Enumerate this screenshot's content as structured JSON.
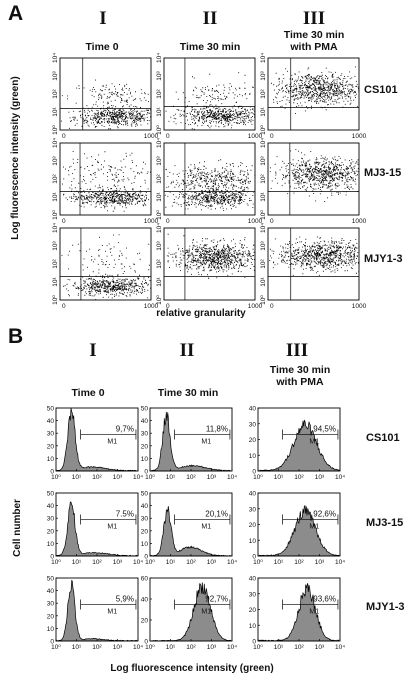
{
  "figure": {
    "panel_A": {
      "letter": "A",
      "columns": [
        {
          "roman": "I",
          "title_lines": [
            "Time  0"
          ]
        },
        {
          "roman": "II",
          "title_lines": [
            "Time  30 min"
          ]
        },
        {
          "roman": "III",
          "title_lines": [
            "Time  30 min",
            "with PMA"
          ]
        }
      ],
      "rows": [
        "CS101",
        "MJ3-15",
        "MJY1-3"
      ],
      "y_axis_label": "Log fluorescence intensity (green)",
      "x_axis_label": "relative granularity",
      "x_tick_labels": [
        "0",
        "1000"
      ],
      "y_tick_labels": [
        "10⁰",
        "10¹",
        "10²",
        "10³",
        "10⁴"
      ]
    },
    "panel_B": {
      "letter": "B",
      "columns": [
        {
          "roman": "I",
          "title_lines": [
            "Time  0"
          ]
        },
        {
          "roman": "II",
          "title_lines": [
            "Time  30 min"
          ]
        },
        {
          "roman": "III",
          "title_lines": [
            "Time 30 min",
            "with PMA"
          ]
        }
      ],
      "rows": [
        "CS101",
        "MJ3-15",
        "MJY1-3"
      ],
      "y_axis_label": "Cell number",
      "x_axis_label": "Log fluorescence intensity (green)",
      "x_tick_labels": [
        "10⁰",
        "10¹",
        "10²",
        "10³",
        "10⁴"
      ],
      "gate_label": "M1"
    }
  },
  "chart_data": [
    {
      "type": "scatter",
      "description_free": true,
      "panel": "A",
      "xlabel": "relative granularity",
      "ylabel": "Log fluorescence intensity (green)",
      "xlim": [
        0,
        1000
      ],
      "ylim_log10": [
        0,
        4
      ],
      "log_y": true,
      "grid": false,
      "cells": [
        {
          "row": "CS101",
          "col": "I",
          "clusters": [
            {
              "x": 620,
              "y_log": 0.75,
              "sx": 230,
              "sy": 0.25,
              "n": 520
            },
            {
              "x": 600,
              "y_log": 1.9,
              "sx": 250,
              "sy": 0.4,
              "n": 140
            }
          ],
          "gate": {
            "x": 250,
            "y_log": 1.2
          }
        },
        {
          "row": "CS101",
          "col": "II",
          "clusters": [
            {
              "x": 620,
              "y_log": 0.8,
              "sx": 230,
              "sy": 0.25,
              "n": 520
            },
            {
              "x": 600,
              "y_log": 1.9,
              "sx": 250,
              "sy": 0.45,
              "n": 130
            }
          ],
          "gate": {
            "x": 230,
            "y_log": 1.3
          }
        },
        {
          "row": "CS101",
          "col": "III",
          "clusters": [
            {
              "x": 560,
              "y_log": 2.3,
              "sx": 250,
              "sy": 0.45,
              "n": 800
            }
          ],
          "gate": {
            "x": 250,
            "y_log": 1.25
          }
        },
        {
          "row": "MJ3-15",
          "col": "I",
          "clusters": [
            {
              "x": 560,
              "y_log": 1.0,
              "sx": 220,
              "sy": 0.25,
              "n": 520
            },
            {
              "x": 550,
              "y_log": 2.3,
              "sx": 280,
              "sy": 0.6,
              "n": 150
            }
          ],
          "gate": {
            "x": 220,
            "y_log": 1.3
          }
        },
        {
          "row": "MJ3-15",
          "col": "II",
          "clusters": [
            {
              "x": 570,
              "y_log": 0.95,
              "sx": 230,
              "sy": 0.25,
              "n": 480
            },
            {
              "x": 570,
              "y_log": 2.0,
              "sx": 260,
              "sy": 0.4,
              "n": 420
            }
          ],
          "gate": {
            "x": 230,
            "y_log": 1.3
          }
        },
        {
          "row": "MJ3-15",
          "col": "III",
          "clusters": [
            {
              "x": 600,
              "y_log": 2.3,
              "sx": 240,
              "sy": 0.45,
              "n": 760
            }
          ],
          "gate": {
            "x": 240,
            "y_log": 1.3
          }
        },
        {
          "row": "MJY1-3",
          "col": "I",
          "clusters": [
            {
              "x": 560,
              "y_log": 0.75,
              "sx": 220,
              "sy": 0.25,
              "n": 520
            },
            {
              "x": 560,
              "y_log": 2.2,
              "sx": 280,
              "sy": 0.6,
              "n": 100
            }
          ],
          "gate": {
            "x": 230,
            "y_log": 1.3
          }
        },
        {
          "row": "MJY1-3",
          "col": "II",
          "clusters": [
            {
              "x": 560,
              "y_log": 2.4,
              "sx": 220,
              "sy": 0.4,
              "n": 800
            }
          ],
          "gate": {
            "x": 230,
            "y_log": 1.3
          }
        },
        {
          "row": "MJY1-3",
          "col": "III",
          "clusters": [
            {
              "x": 600,
              "y_log": 2.5,
              "sx": 250,
              "sy": 0.4,
              "n": 800
            }
          ],
          "gate": {
            "x": 250,
            "y_log": 1.3
          }
        }
      ]
    },
    {
      "type": "area",
      "panel": "B",
      "xlabel": "Log fluorescence intensity (green)",
      "ylabel": "Cell number",
      "xlim_log10": [
        0,
        4
      ],
      "log_x": true,
      "grid": false,
      "cells": [
        {
          "row": "CS101",
          "col": "I",
          "ymax": 50,
          "y_ticks": [
            0,
            10,
            20,
            30,
            40,
            50
          ],
          "percent": "9,7%",
          "gate_log": [
            1.2,
            3.9
          ],
          "peaks": [
            {
              "mu": 0.75,
              "sigma": 0.18,
              "h": 46
            },
            {
              "mu": 1.8,
              "sigma": 0.6,
              "h": 3
            }
          ]
        },
        {
          "row": "CS101",
          "col": "II",
          "ymax": 50,
          "y_ticks": [
            0,
            10,
            20,
            30,
            40,
            50
          ],
          "percent": "11,8%",
          "gate_log": [
            1.2,
            3.9
          ],
          "peaks": [
            {
              "mu": 0.8,
              "sigma": 0.18,
              "h": 44
            },
            {
              "mu": 2.1,
              "sigma": 0.6,
              "h": 4
            }
          ]
        },
        {
          "row": "CS101",
          "col": "III",
          "ymax": 40,
          "y_ticks": [
            0,
            10,
            20,
            30,
            40
          ],
          "percent": "94,5%",
          "gate_log": [
            1.2,
            3.9
          ],
          "peaks": [
            {
              "mu": 2.3,
              "sigma": 0.55,
              "h": 29
            }
          ]
        },
        {
          "row": "MJ3-15",
          "col": "I",
          "ymax": 50,
          "y_ticks": [
            0,
            10,
            20,
            30,
            40,
            50
          ],
          "percent": "7.5%",
          "gate_log": [
            1.2,
            3.9
          ],
          "peaks": [
            {
              "mu": 0.75,
              "sigma": 0.18,
              "h": 40
            },
            {
              "mu": 1.9,
              "sigma": 0.6,
              "h": 2.5
            }
          ]
        },
        {
          "row": "MJ3-15",
          "col": "II",
          "ymax": 50,
          "y_ticks": [
            0,
            10,
            20,
            30,
            40,
            50
          ],
          "percent": "20,1%",
          "gate_log": [
            1.2,
            3.9
          ],
          "peaks": [
            {
              "mu": 0.85,
              "sigma": 0.18,
              "h": 36
            },
            {
              "mu": 2.0,
              "sigma": 0.5,
              "h": 7
            }
          ]
        },
        {
          "row": "MJ3-15",
          "col": "III",
          "ymax": 40,
          "y_ticks": [
            0,
            10,
            20,
            30,
            40
          ],
          "percent": "92,6%",
          "gate_log": [
            1.2,
            3.9
          ],
          "peaks": [
            {
              "mu": 2.3,
              "sigma": 0.5,
              "h": 28
            }
          ]
        },
        {
          "row": "MJY1-3",
          "col": "I",
          "ymax": 50,
          "y_ticks": [
            0,
            10,
            20,
            30,
            40,
            50
          ],
          "percent": "5,9%",
          "gate_log": [
            1.2,
            3.9
          ],
          "peaks": [
            {
              "mu": 0.75,
              "sigma": 0.17,
              "h": 45
            },
            {
              "mu": 1.8,
              "sigma": 0.5,
              "h": 1.5
            }
          ]
        },
        {
          "row": "MJY1-3",
          "col": "II",
          "ymax": 60,
          "y_ticks": [
            0,
            20,
            40,
            60
          ],
          "percent": "92,7%",
          "gate_log": [
            1.2,
            3.9
          ],
          "peaks": [
            {
              "mu": 2.55,
              "sigma": 0.4,
              "h": 52
            }
          ]
        },
        {
          "row": "MJY1-3",
          "col": "III",
          "ymax": 40,
          "y_ticks": [
            0,
            10,
            20,
            30,
            40
          ],
          "percent": "93,6%",
          "gate_log": [
            1.2,
            3.9
          ],
          "peaks": [
            {
              "mu": 2.4,
              "sigma": 0.4,
              "h": 33
            }
          ]
        }
      ]
    }
  ]
}
